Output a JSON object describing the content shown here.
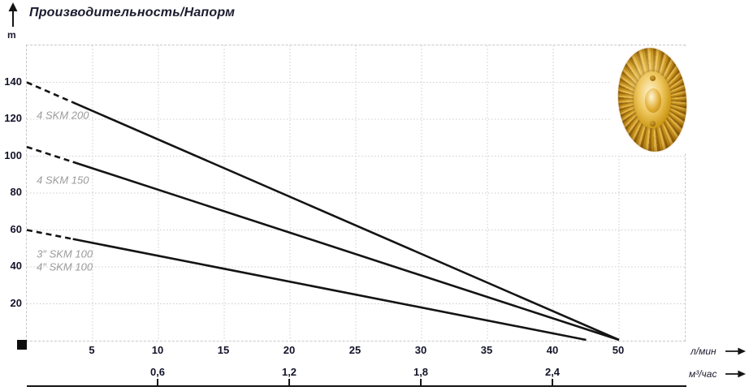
{
  "page": {
    "background": "#ffffff"
  },
  "header": {
    "title": "Производительность/Напорм",
    "y_axis_unit": "m"
  },
  "axis_units": {
    "flow_lmin": "л/мин",
    "flow_m3h": "м³/час"
  },
  "icons": {
    "y_axis_arrow": "up-arrow",
    "flow_lmin_arrow": "right-arrow",
    "flow_m3h_arrow": "right-arrow",
    "origin_marker": "black-square",
    "impeller": "golden-brass-pump-impeller-photo"
  },
  "colors": {
    "curve": "#141414",
    "grid": "#cccccc",
    "tick_text": "#14142a",
    "annotation_text": "#9b9b9b",
    "impeller_gold_light": "#f5d06d",
    "impeller_gold_dark": "#8a5a08"
  },
  "chart_data": {
    "type": "line",
    "title": "Производительность/Напорм",
    "xlabel": "л/мин",
    "xlabel_secondary": "м³/час",
    "ylabel": "m",
    "grid": true,
    "x_axis": {
      "ticks": [
        5,
        10,
        15,
        20,
        25,
        30,
        35,
        40,
        50
      ],
      "tick_spacing": "equal-printed",
      "range_printed": [
        0,
        55
      ]
    },
    "y_axis": {
      "ticks": [
        20,
        40,
        60,
        80,
        100,
        120,
        140
      ],
      "range": [
        0,
        160
      ]
    },
    "secondary_ticks": [
      {
        "label": "0,6",
        "at_lmin": 10
      },
      {
        "label": "1,2",
        "at_lmin": 20
      },
      {
        "label": "1,8",
        "at_lmin": 30
      },
      {
        "label": "2,4",
        "at_lmin": 40
      }
    ],
    "series": [
      {
        "name": "4 SKM 200",
        "points": [
          [
            0,
            140
          ],
          [
            50,
            0
          ]
        ],
        "dashed_until_lmin": 3.5
      },
      {
        "name": "4 SKM 150",
        "points": [
          [
            0,
            105
          ],
          [
            50,
            0
          ]
        ],
        "dashed_until_lmin": 3.5
      },
      {
        "name": "3″/4″ SKM 100",
        "points": [
          [
            0,
            60
          ],
          [
            45,
            0
          ]
        ],
        "dashed_until_lmin": 3.5
      }
    ],
    "annotations": [
      {
        "text": "4 SKM 200",
        "x": 0.75,
        "y": 122
      },
      {
        "text": "4 SKM 150",
        "x": 0.75,
        "y": 87
      },
      {
        "text": "3″ SKM 100",
        "x": 0.75,
        "y": 47
      },
      {
        "text": "4″ SKM 100",
        "x": 0.75,
        "y": 40
      }
    ]
  }
}
